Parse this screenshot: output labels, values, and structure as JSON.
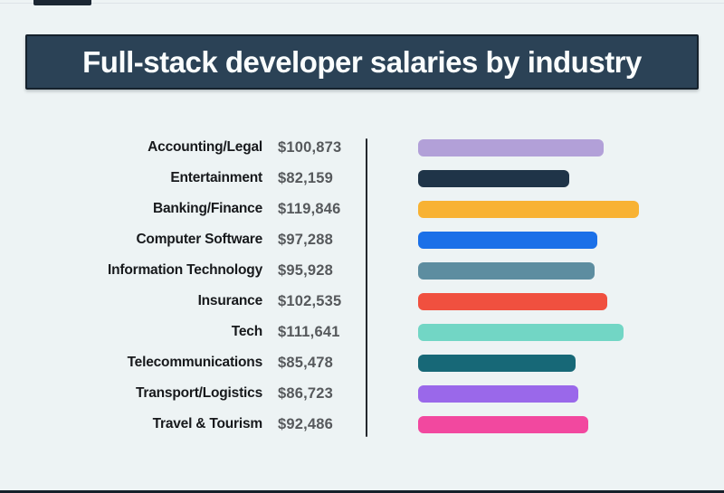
{
  "colors": {
    "background": "#edf3f4",
    "banner_bg": "#2b4256",
    "banner_border": "#15212c",
    "banner_text": "#fafdfd",
    "label_text": "#17191c",
    "value_text": "#56595c",
    "divider": "#24282d",
    "bottom_edge": "#15202a"
  },
  "chart_data": {
    "type": "bar",
    "orientation": "horizontal",
    "title": "Full-stack developer salaries by industry",
    "categories": [
      "Accounting/Legal",
      "Entertainment",
      "Banking/Finance",
      "Computer Software",
      "Information Technology",
      "Insurance",
      "Tech",
      "Telecommunications",
      "Transport/Logistics",
      "Travel & Tourism"
    ],
    "values": [
      100873,
      82159,
      119846,
      97288,
      95928,
      102535,
      111641,
      85478,
      86723,
      92486
    ],
    "value_labels": [
      "$100,873",
      "$82,159",
      "$119,846",
      "$97,288",
      "$95,928",
      "$102,535",
      "$111,641",
      "$85,478",
      "$86,723",
      "$92,486"
    ],
    "bar_colors": [
      "#b2a0d8",
      "#1f3448",
      "#f8b233",
      "#1b70e8",
      "#5d8da0",
      "#f0503f",
      "#72d6c5",
      "#176877",
      "#9a68ea",
      "#f2489f"
    ],
    "xlabel": "",
    "ylabel": "",
    "xlim": [
      0,
      119846
    ],
    "grid": false,
    "legend": false
  }
}
